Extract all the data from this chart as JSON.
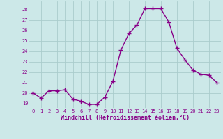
{
  "x": [
    0,
    1,
    2,
    3,
    4,
    5,
    6,
    7,
    8,
    9,
    10,
    11,
    12,
    13,
    14,
    15,
    16,
    17,
    18,
    19,
    20,
    21,
    22,
    23
  ],
  "y": [
    20.0,
    19.5,
    20.2,
    20.2,
    20.3,
    19.4,
    19.2,
    18.9,
    18.9,
    19.6,
    21.1,
    24.1,
    25.7,
    26.5,
    28.1,
    28.1,
    28.1,
    26.8,
    24.3,
    23.2,
    22.2,
    21.8,
    21.7,
    21.0
  ],
  "line_color": "#880088",
  "marker": "+",
  "markersize": 4,
  "markeredgewidth": 1.0,
  "linewidth": 1.0,
  "bg_color": "#cce8e8",
  "grid_color": "#aacccc",
  "xlabel": "Windchill (Refroidissement éolien,°C)",
  "xlabel_color": "#880088",
  "tick_color": "#880088",
  "ylim": [
    18.5,
    28.8
  ],
  "yticks": [
    19,
    20,
    21,
    22,
    23,
    24,
    25,
    26,
    27,
    28
  ],
  "xticks": [
    0,
    1,
    2,
    3,
    4,
    5,
    6,
    7,
    8,
    9,
    10,
    11,
    12,
    13,
    14,
    15,
    16,
    17,
    18,
    19,
    20,
    21,
    22,
    23
  ],
  "xlim": [
    -0.5,
    23.5
  ],
  "tick_fontsize": 5.0,
  "xlabel_fontsize": 6.0
}
